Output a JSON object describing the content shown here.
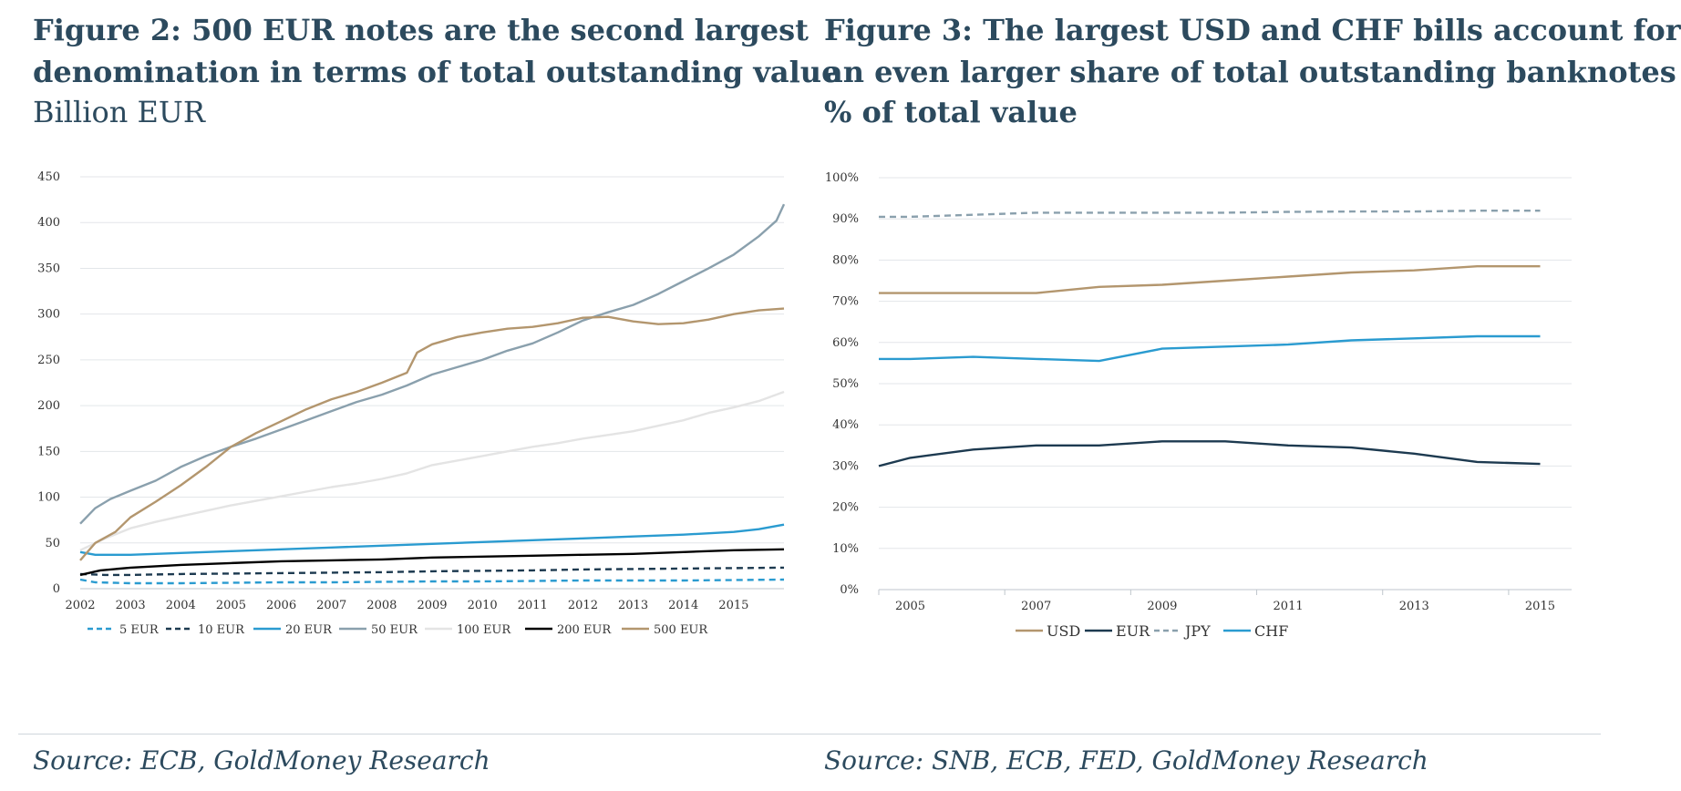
{
  "figures": [
    {
      "title_line1": "Figure 2: 500 EUR notes are the second largest",
      "title_line2": "denomination in terms of total outstanding value",
      "subtitle": "Billion EUR",
      "source": "Source: ECB, GoldMoney Research"
    },
    {
      "title_line1": "Figure 3: The largest USD and CHF bills account for",
      "title_line2": "an even larger share of total outstanding banknotes",
      "subtitle": "% of total value",
      "source": "Source: SNB, ECB,  FED, GoldMoney Research"
    }
  ],
  "chart_data": [
    {
      "type": "line",
      "x_tick_labels": [
        "2002",
        "2003",
        "2004",
        "2005",
        "2006",
        "2007",
        "2008",
        "2009",
        "2010",
        "2011",
        "2012",
        "2013",
        "2014",
        "2015"
      ],
      "x_range": [
        2002.0,
        2016.0
      ],
      "y_tick_labels": [
        "0",
        "50",
        "100",
        "150",
        "200",
        "250",
        "300",
        "350",
        "400",
        "450"
      ],
      "ylim": [
        0,
        450
      ],
      "grid": true,
      "legend_position": "bottom",
      "series": [
        {
          "name": "5 EUR",
          "color": "#2a9bd0",
          "dash": "dashed",
          "points": [
            [
              2002.0,
              10
            ],
            [
              2002.3,
              7
            ],
            [
              2003,
              6
            ],
            [
              2004,
              6
            ],
            [
              2005,
              6.5
            ],
            [
              2006,
              7
            ],
            [
              2007,
              7
            ],
            [
              2008,
              7.5
            ],
            [
              2009,
              8
            ],
            [
              2010,
              8
            ],
            [
              2011,
              8.5
            ],
            [
              2012,
              9
            ],
            [
              2013,
              9
            ],
            [
              2014,
              9
            ],
            [
              2015,
              9.5
            ],
            [
              2016,
              10
            ]
          ]
        },
        {
          "name": "10 EUR",
          "color": "#1d3a50",
          "dash": "dashed",
          "points": [
            [
              2002.0,
              16
            ],
            [
              2002.5,
              15
            ],
            [
              2003,
              15
            ],
            [
              2004,
              16
            ],
            [
              2005,
              16.5
            ],
            [
              2006,
              17
            ],
            [
              2007,
              17.5
            ],
            [
              2008,
              18
            ],
            [
              2009,
              19
            ],
            [
              2010,
              19.5
            ],
            [
              2011,
              20
            ],
            [
              2012,
              21
            ],
            [
              2013,
              21.5
            ],
            [
              2014,
              22
            ],
            [
              2015,
              22.5
            ],
            [
              2016,
              23
            ]
          ]
        },
        {
          "name": "20 EUR",
          "color": "#2a9bd0",
          "dash": "solid",
          "points": [
            [
              2002.0,
              40
            ],
            [
              2002.3,
              37
            ],
            [
              2003,
              37
            ],
            [
              2003.5,
              38
            ],
            [
              2004,
              39
            ],
            [
              2005,
              41
            ],
            [
              2006,
              43
            ],
            [
              2007,
              45
            ],
            [
              2008,
              47
            ],
            [
              2009,
              49
            ],
            [
              2010,
              51
            ],
            [
              2011,
              53
            ],
            [
              2012,
              55
            ],
            [
              2013,
              57
            ],
            [
              2014,
              59
            ],
            [
              2015,
              62
            ],
            [
              2015.5,
              65
            ],
            [
              2016,
              70
            ]
          ]
        },
        {
          "name": "50 EUR",
          "color": "#8aa0ad",
          "dash": "solid",
          "points": [
            [
              2002.0,
              71
            ],
            [
              2002.3,
              88
            ],
            [
              2002.6,
              98
            ],
            [
              2003,
              107
            ],
            [
              2003.5,
              118
            ],
            [
              2004,
              133
            ],
            [
              2004.5,
              145
            ],
            [
              2005,
              155
            ],
            [
              2005.5,
              164
            ],
            [
              2006,
              174
            ],
            [
              2006.5,
              184
            ],
            [
              2007,
              194
            ],
            [
              2007.5,
              204
            ],
            [
              2008,
              212
            ],
            [
              2008.5,
              222
            ],
            [
              2009,
              234
            ],
            [
              2009.5,
              242
            ],
            [
              2010,
              250
            ],
            [
              2010.5,
              260
            ],
            [
              2011,
              268
            ],
            [
              2011.5,
              280
            ],
            [
              2012,
              293
            ],
            [
              2012.5,
              302
            ],
            [
              2013,
              310
            ],
            [
              2013.5,
              322
            ],
            [
              2014,
              336
            ],
            [
              2014.5,
              350
            ],
            [
              2015,
              365
            ],
            [
              2015.5,
              385
            ],
            [
              2015.85,
              402
            ],
            [
              2016,
              420
            ]
          ]
        },
        {
          "name": "100 EUR",
          "color": "#e4e4e4",
          "dash": "solid",
          "points": [
            [
              2002.0,
              42
            ],
            [
              2002.5,
              55
            ],
            [
              2003,
              66
            ],
            [
              2003.5,
              73
            ],
            [
              2004,
              79
            ],
            [
              2004.5,
              85
            ],
            [
              2005,
              91
            ],
            [
              2005.5,
              96
            ],
            [
              2006,
              101
            ],
            [
              2006.5,
              106
            ],
            [
              2007,
              111
            ],
            [
              2007.5,
              115
            ],
            [
              2008,
              120
            ],
            [
              2008.5,
              126
            ],
            [
              2009,
              135
            ],
            [
              2009.5,
              140
            ],
            [
              2010,
              145
            ],
            [
              2010.5,
              150
            ],
            [
              2011,
              155
            ],
            [
              2011.5,
              159
            ],
            [
              2012,
              164
            ],
            [
              2012.5,
              168
            ],
            [
              2013,
              172
            ],
            [
              2013.5,
              178
            ],
            [
              2014,
              184
            ],
            [
              2014.5,
              192
            ],
            [
              2015,
              198
            ],
            [
              2015.5,
              205
            ],
            [
              2016,
              215
            ]
          ]
        },
        {
          "name": "200 EUR",
          "color": "#000000",
          "dash": "solid",
          "points": [
            [
              2002.0,
              15
            ],
            [
              2002.4,
              20
            ],
            [
              2003,
              23
            ],
            [
              2004,
              26
            ],
            [
              2005,
              28
            ],
            [
              2006,
              30
            ],
            [
              2007,
              31
            ],
            [
              2008,
              32
            ],
            [
              2009,
              34
            ],
            [
              2010,
              35
            ],
            [
              2011,
              36
            ],
            [
              2012,
              37
            ],
            [
              2013,
              38
            ],
            [
              2014,
              40
            ],
            [
              2015,
              42
            ],
            [
              2016,
              43
            ]
          ]
        },
        {
          "name": "500 EUR",
          "color": "#b3966e",
          "dash": "solid",
          "points": [
            [
              2002.0,
              31
            ],
            [
              2002.3,
              50
            ],
            [
              2002.7,
              62
            ],
            [
              2003,
              78
            ],
            [
              2003.5,
              95
            ],
            [
              2004,
              113
            ],
            [
              2004.5,
              133
            ],
            [
              2005,
              155
            ],
            [
              2005.5,
              170
            ],
            [
              2006,
              183
            ],
            [
              2006.5,
              196
            ],
            [
              2007,
              207
            ],
            [
              2007.5,
              215
            ],
            [
              2008,
              225
            ],
            [
              2008.5,
              236
            ],
            [
              2008.7,
              258
            ],
            [
              2009,
              267
            ],
            [
              2009.5,
              275
            ],
            [
              2010,
              280
            ],
            [
              2010.5,
              284
            ],
            [
              2011,
              286
            ],
            [
              2011.5,
              290
            ],
            [
              2012,
              296
            ],
            [
              2012.5,
              297
            ],
            [
              2013,
              292
            ],
            [
              2013.5,
              289
            ],
            [
              2014,
              290
            ],
            [
              2014.5,
              294
            ],
            [
              2015,
              300
            ],
            [
              2015.5,
              304
            ],
            [
              2016,
              306
            ]
          ]
        }
      ]
    },
    {
      "type": "line",
      "x_tick_labels": [
        "2005",
        "2007",
        "2009",
        "2011",
        "2013",
        "2015"
      ],
      "x": [
        2004.5,
        2005,
        2006,
        2007,
        2008,
        2009,
        2010,
        2011,
        2012,
        2013,
        2014,
        2015
      ],
      "xlim": [
        2004.5,
        2015.5
      ],
      "y_tick_labels": [
        "0%",
        "10%",
        "20%",
        "30%",
        "40%",
        "50%",
        "60%",
        "70%",
        "80%",
        "90%",
        "100%"
      ],
      "ylim": [
        0,
        100
      ],
      "grid": true,
      "legend_position": "bottom",
      "series": [
        {
          "name": "USD",
          "color": "#b3966e",
          "dash": "solid",
          "values": [
            72,
            72,
            72,
            72,
            73.5,
            74,
            75,
            76,
            77,
            77.5,
            78.5,
            78.5
          ]
        },
        {
          "name": "EUR",
          "color": "#1d3a50",
          "dash": "solid",
          "values": [
            30,
            32,
            34,
            35,
            35,
            36,
            36,
            35,
            34.5,
            33,
            31,
            30.5
          ]
        },
        {
          "name": "JPY",
          "color": "#8aa0ad",
          "dash": "dashed",
          "values": [
            90.5,
            90.5,
            91,
            91.5,
            91.5,
            91.5,
            91.5,
            91.7,
            91.8,
            91.8,
            92,
            92
          ]
        },
        {
          "name": "CHF",
          "color": "#2a9bd0",
          "dash": "solid",
          "values": [
            56,
            56,
            56.5,
            56,
            55.5,
            58.5,
            59,
            59.5,
            60.5,
            61,
            61.5,
            61.5
          ]
        }
      ]
    }
  ]
}
